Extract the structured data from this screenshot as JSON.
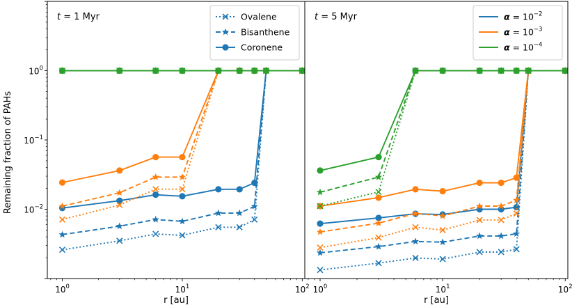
{
  "figure": {
    "ylabel": "Remaining fraction of PAHs",
    "xlabel": "r [au]"
  },
  "chart_data": [
    {
      "type": "line",
      "panel_label": "t = 1 Myr",
      "xlabel": "r [au]",
      "ylabel": "Remaining fraction of PAHs",
      "xscale": "log",
      "yscale": "log",
      "xlim": [
        0.75,
        105
      ],
      "ylim": [
        0.001,
        10
      ],
      "grid": false,
      "legend": {
        "placement": "top-right",
        "entries": [
          {
            "label": "Ovalene",
            "linestyle": "dotted",
            "marker": "x"
          },
          {
            "label": "Bisanthene",
            "linestyle": "dashed",
            "marker": "star"
          },
          {
            "label": "Coronene",
            "linestyle": "solid",
            "marker": "circle"
          }
        ]
      },
      "series": [
        {
          "alpha_exp": -2,
          "color": "#1f77b4",
          "molecule": "Ovalene",
          "linestyle": "dotted",
          "marker": "x",
          "x": [
            1,
            3,
            6,
            10,
            20,
            30,
            40,
            50,
            100
          ],
          "y": [
            0.0026,
            0.0035,
            0.0044,
            0.0042,
            0.0055,
            0.0055,
            0.0071,
            1,
            1
          ]
        },
        {
          "alpha_exp": -2,
          "color": "#1f77b4",
          "molecule": "Bisanthene",
          "linestyle": "dashed",
          "marker": "star",
          "x": [
            1,
            3,
            6,
            10,
            20,
            30,
            40,
            50,
            100
          ],
          "y": [
            0.0043,
            0.0057,
            0.0071,
            0.0067,
            0.0088,
            0.0088,
            0.011,
            1,
            1
          ]
        },
        {
          "alpha_exp": -2,
          "color": "#1f77b4",
          "molecule": "Coronene",
          "linestyle": "solid",
          "marker": "circle",
          "x": [
            1,
            3,
            6,
            10,
            20,
            30,
            40,
            50,
            100
          ],
          "y": [
            0.0104,
            0.0133,
            0.0162,
            0.0154,
            0.0194,
            0.0194,
            0.0241,
            1,
            1
          ]
        },
        {
          "alpha_exp": -3,
          "color": "#ff7f0e",
          "molecule": "Ovalene",
          "linestyle": "dotted",
          "marker": "x",
          "x": [
            1,
            3,
            6,
            10,
            20,
            30,
            40,
            50,
            100
          ],
          "y": [
            0.0071,
            0.0115,
            0.0195,
            0.0195,
            1,
            1,
            1,
            1,
            1
          ]
        },
        {
          "alpha_exp": -3,
          "color": "#ff7f0e",
          "molecule": "Bisanthene",
          "linestyle": "dashed",
          "marker": "star",
          "x": [
            1,
            3,
            6,
            10,
            20,
            30,
            40,
            50,
            100
          ],
          "y": [
            0.0111,
            0.0173,
            0.0291,
            0.0291,
            1,
            1,
            1,
            1,
            1
          ]
        },
        {
          "alpha_exp": -3,
          "color": "#ff7f0e",
          "molecule": "Coronene",
          "linestyle": "solid",
          "marker": "circle",
          "x": [
            1,
            3,
            6,
            10,
            20,
            30,
            40,
            50,
            100
          ],
          "y": [
            0.0243,
            0.0362,
            0.0566,
            0.0566,
            1,
            1,
            1,
            1,
            1
          ]
        },
        {
          "alpha_exp": -4,
          "color": "#2ca02c",
          "molecule": "Ovalene",
          "linestyle": "dotted",
          "marker": "x",
          "x": [
            1,
            3,
            6,
            10,
            20,
            30,
            40,
            50,
            100
          ],
          "y": [
            1,
            1,
            1,
            1,
            1,
            1,
            1,
            1,
            1
          ]
        },
        {
          "alpha_exp": -4,
          "color": "#2ca02c",
          "molecule": "Bisanthene",
          "linestyle": "dashed",
          "marker": "star",
          "x": [
            1,
            3,
            6,
            10,
            20,
            30,
            40,
            50,
            100
          ],
          "y": [
            1,
            1,
            1,
            1,
            1,
            1,
            1,
            1,
            1
          ]
        },
        {
          "alpha_exp": -4,
          "color": "#2ca02c",
          "molecule": "Coronene",
          "linestyle": "solid",
          "marker": "circle",
          "x": [
            1,
            3,
            6,
            10,
            20,
            30,
            40,
            50,
            100
          ],
          "y": [
            1,
            1,
            1,
            1,
            1,
            1,
            1,
            1,
            1
          ]
        }
      ]
    },
    {
      "type": "line",
      "panel_label": "t = 5 Myr",
      "xlabel": "r [au]",
      "ylabel": "",
      "xscale": "log",
      "yscale": "log",
      "xlim": [
        0.75,
        105
      ],
      "ylim": [
        0.001,
        10
      ],
      "grid": false,
      "legend": {
        "placement": "top-right",
        "entries": [
          {
            "label": "α = 10",
            "sup": "−2",
            "color": "#1f77b4"
          },
          {
            "label": "α = 10",
            "sup": "−3",
            "color": "#ff7f0e"
          },
          {
            "label": "α = 10",
            "sup": "−4",
            "color": "#2ca02c"
          }
        ]
      },
      "series": [
        {
          "alpha_exp": -2,
          "color": "#1f77b4",
          "molecule": "Ovalene",
          "linestyle": "dotted",
          "marker": "x",
          "x": [
            1,
            3,
            6,
            10,
            20,
            30,
            40,
            50,
            100
          ],
          "y": [
            0.00133,
            0.00167,
            0.00198,
            0.00191,
            0.00241,
            0.00241,
            0.00265,
            1,
            1
          ]
        },
        {
          "alpha_exp": -2,
          "color": "#1f77b4",
          "molecule": "Bisanthene",
          "linestyle": "dashed",
          "marker": "star",
          "x": [
            1,
            3,
            6,
            10,
            20,
            30,
            40,
            50,
            100
          ],
          "y": [
            0.00235,
            0.00289,
            0.00343,
            0.00335,
            0.00411,
            0.00411,
            0.00443,
            1,
            1
          ]
        },
        {
          "alpha_exp": -2,
          "color": "#1f77b4",
          "molecule": "Coronene",
          "linestyle": "solid",
          "marker": "circle",
          "x": [
            1,
            3,
            6,
            10,
            20,
            30,
            40,
            50,
            100
          ],
          "y": [
            0.0062,
            0.0075,
            0.0086,
            0.0084,
            0.01,
            0.01,
            0.0107,
            1,
            1
          ]
        },
        {
          "alpha_exp": -3,
          "color": "#ff7f0e",
          "molecule": "Ovalene",
          "linestyle": "dotted",
          "marker": "x",
          "x": [
            1,
            3,
            6,
            10,
            20,
            30,
            40,
            50,
            100
          ],
          "y": [
            0.0028,
            0.0039,
            0.0055,
            0.005,
            0.007,
            0.007,
            0.0087,
            1,
            1
          ]
        },
        {
          "alpha_exp": -3,
          "color": "#ff7f0e",
          "molecule": "Bisanthene",
          "linestyle": "dashed",
          "marker": "star",
          "x": [
            1,
            3,
            6,
            10,
            20,
            30,
            40,
            50,
            100
          ],
          "y": [
            0.0047,
            0.0063,
            0.0087,
            0.008,
            0.0111,
            0.0111,
            0.0135,
            1,
            1
          ]
        },
        {
          "alpha_exp": -3,
          "color": "#ff7f0e",
          "molecule": "Coronene",
          "linestyle": "solid",
          "marker": "circle",
          "x": [
            1,
            3,
            6,
            10,
            20,
            30,
            40,
            50,
            100
          ],
          "y": [
            0.0111,
            0.0147,
            0.0194,
            0.0182,
            0.0241,
            0.0241,
            0.0286,
            1,
            1
          ]
        },
        {
          "alpha_exp": -4,
          "color": "#2ca02c",
          "molecule": "Ovalene",
          "linestyle": "dotted",
          "marker": "x",
          "x": [
            1,
            3,
            6,
            10,
            20,
            30,
            40,
            50,
            100
          ],
          "y": [
            0.0111,
            0.0178,
            1,
            1,
            1,
            1,
            1,
            1,
            1
          ]
        },
        {
          "alpha_exp": -4,
          "color": "#2ca02c",
          "molecule": "Bisanthene",
          "linestyle": "dashed",
          "marker": "star",
          "x": [
            1,
            3,
            6,
            10,
            20,
            30,
            40,
            50,
            100
          ],
          "y": [
            0.0176,
            0.0291,
            1,
            1,
            1,
            1,
            1,
            1,
            1
          ]
        },
        {
          "alpha_exp": -4,
          "color": "#2ca02c",
          "molecule": "Coronene",
          "linestyle": "solid",
          "marker": "circle",
          "x": [
            1,
            3,
            6,
            10,
            20,
            30,
            40,
            50,
            100
          ],
          "y": [
            0.0362,
            0.0566,
            1,
            1,
            1,
            1,
            1,
            1,
            1
          ]
        }
      ]
    }
  ]
}
